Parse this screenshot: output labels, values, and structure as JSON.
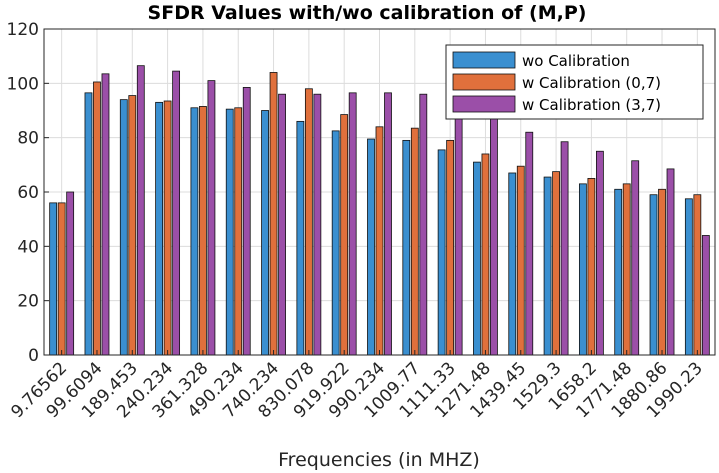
{
  "chart_data": {
    "type": "bar",
    "title": "SFDR Values with/wo calibration of (M,P)",
    "xlabel": "Frequencies (in MHZ)",
    "ylabel": "",
    "ylim": [
      0,
      120
    ],
    "yticks": [
      0,
      20,
      40,
      60,
      80,
      100,
      120
    ],
    "grid": true,
    "legend_position": "top-right",
    "categories": [
      "9.76562",
      "99.6094",
      "189.453",
      "240.234",
      "361.328",
      "490.234",
      "740.234",
      "830.078",
      "919.922",
      "990.234",
      "1009.77",
      "1111.33",
      "1271.48",
      "1439.45",
      "1529.3",
      "1658.2",
      "1771.48",
      "1880.86",
      "1990.23"
    ],
    "series": [
      {
        "name": "wo Calibration",
        "color": "#3a8fd0",
        "values": [
          56,
          96.5,
          94,
          93,
          91,
          90.5,
          90,
          86,
          82.5,
          79.5,
          79,
          75.5,
          71,
          67,
          65.5,
          63,
          61,
          59,
          57.5
        ]
      },
      {
        "name": "w Calibration (0,7)",
        "color": "#e0703c",
        "values": [
          56,
          100.5,
          95.5,
          93.5,
          91.5,
          91,
          104,
          98,
          88.5,
          84,
          83.5,
          79,
          74,
          69.5,
          67.5,
          65,
          63,
          61,
          59
        ]
      },
      {
        "name": "w Calibration (3,7)",
        "color": "#9b4fa8",
        "values": [
          60,
          103.5,
          106.5,
          104.5,
          101,
          98.5,
          96,
          96,
          96.5,
          96.5,
          96,
          88,
          88,
          82,
          78.5,
          75,
          71.5,
          68.5,
          44
        ]
      }
    ]
  }
}
